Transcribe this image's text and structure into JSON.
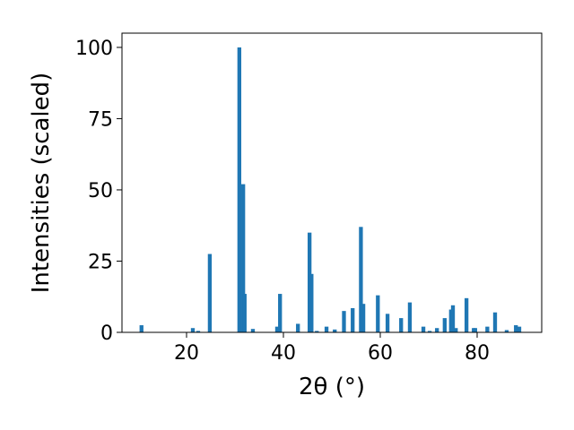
{
  "chart_data": {
    "type": "bar",
    "x_label": "2θ (°)",
    "y_label": "Intensities (scaled)",
    "color": "#1f77b4",
    "x": [
      10.7,
      21.3,
      22.4,
      24.8,
      30.9,
      31.7,
      32.0,
      33.7,
      38.7,
      39.3,
      43.0,
      45.4,
      45.8,
      46.9,
      48.9,
      50.6,
      52.5,
      54.3,
      56.0,
      56.5,
      59.5,
      61.5,
      64.3,
      66.1,
      68.9,
      70.2,
      71.7,
      73.3,
      74.6,
      75.0,
      75.6,
      77.8,
      79.3,
      79.6,
      82.1,
      83.7,
      86.1,
      88.0,
      88.7
    ],
    "values": [
      2.5,
      1.5,
      0.5,
      27.5,
      100,
      52,
      13.5,
      1.2,
      2,
      13.5,
      3,
      35,
      20.5,
      0.5,
      2,
      1,
      7.5,
      8.5,
      37,
      10,
      13,
      6.5,
      5,
      10.5,
      2,
      0.5,
      1.5,
      5,
      8,
      9.5,
      1.5,
      12,
      1.5,
      1.5,
      2,
      7,
      0.8,
      2.5,
      2
    ],
    "xlim": [
      6.67,
      93.33
    ],
    "ylim": [
      0,
      105
    ],
    "xticks": [
      20,
      40,
      60,
      80
    ],
    "yticks": [
      0,
      25,
      50,
      75,
      100
    ]
  }
}
